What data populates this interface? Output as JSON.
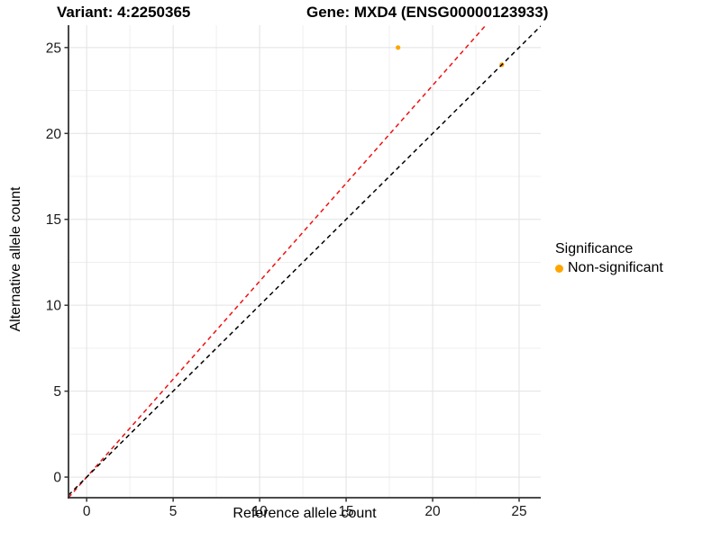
{
  "titles": {
    "variant": "Variant: 4:2250365",
    "gene": "Gene: MXD4 (ENSG00000123933)"
  },
  "chart_data": {
    "type": "scatter",
    "xlabel": "Reference allele count",
    "ylabel": "Alternative allele count",
    "xlim": [
      -1.05,
      26.25
    ],
    "ylim": [
      -1.2,
      26.3
    ],
    "xticks": [
      0,
      5,
      10,
      15,
      20,
      25
    ],
    "yticks": [
      0,
      5,
      10,
      15,
      20,
      25
    ],
    "minor_grid": true,
    "grid_on": true,
    "points": [
      {
        "x": 18,
        "y": 25,
        "series": "Non-significant"
      },
      {
        "x": 24,
        "y": 24,
        "series": "Non-significant"
      }
    ],
    "lines": [
      {
        "name": "expected-ratio-line",
        "slope": 1.14,
        "intercept": 0,
        "color": "#ee1111",
        "style": "dashed"
      },
      {
        "name": "identity-line",
        "slope": 1.0,
        "intercept": 0,
        "color": "#000000",
        "style": "dashed"
      }
    ],
    "legend": {
      "title": "Significance",
      "position": "right",
      "items": [
        {
          "label": "Non-significant",
          "color": "#FFA500"
        }
      ]
    },
    "colors": {
      "point": "#FFA500",
      "major_grid": "#e2e2e2",
      "minor_grid": "#efefef",
      "axis": "#333333",
      "tick_label": "#1a1a1a"
    }
  }
}
